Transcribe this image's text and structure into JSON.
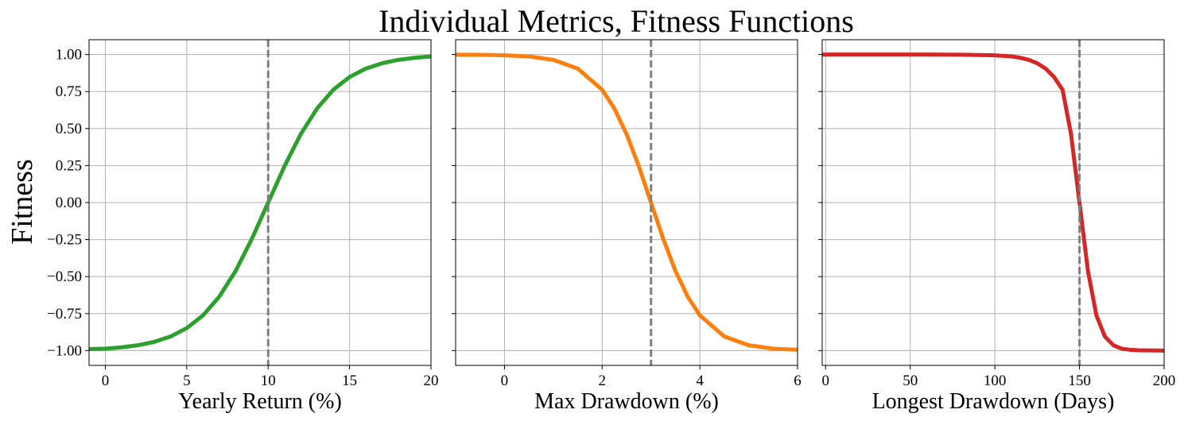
{
  "suptitle": "Individual Metrics, Fitness Functions",
  "shared_ylabel": "Fitness",
  "colors": {
    "green": "#2ca02c",
    "orange": "#ff7f0e",
    "red": "#d62728",
    "vline": "#808080",
    "grid": "#b0b0b0"
  },
  "chart_data": [
    {
      "type": "line",
      "xlabel": "Yearly Return (%)",
      "ylabel": "Fitness",
      "xlim": [
        -1,
        20
      ],
      "ylim": [
        -1.1,
        1.1
      ],
      "xticks": [
        0,
        5,
        10,
        15,
        20
      ],
      "xtick_labels": [
        "0",
        "5",
        "10",
        "15",
        "20"
      ],
      "yticks": [
        1.0,
        0.75,
        0.5,
        0.25,
        0.0,
        -0.25,
        -0.5,
        -0.75,
        -1.0
      ],
      "ytick_labels": [
        "1.00",
        "0.75",
        "0.50",
        "0.25",
        "0.00",
        "−0.25",
        "−0.50",
        "−0.75",
        "−1.00"
      ],
      "grid": true,
      "vline_x": 10,
      "series": [
        {
          "color": "#2ca02c",
          "x": [
            -1,
            0,
            1,
            2,
            3,
            4,
            5,
            6,
            7,
            8,
            9,
            10,
            11,
            12,
            13,
            14,
            15,
            16,
            17,
            18,
            19,
            20
          ],
          "y": [
            -0.99,
            -0.987,
            -0.978,
            -0.964,
            -0.941,
            -0.905,
            -0.848,
            -0.762,
            -0.635,
            -0.462,
            -0.245,
            0.0,
            0.245,
            0.462,
            0.635,
            0.762,
            0.848,
            0.905,
            0.941,
            0.964,
            0.978,
            0.987
          ]
        }
      ]
    },
    {
      "type": "line",
      "xlabel": "Max Drawdown (%)",
      "ylabel": "",
      "xlim": [
        -1,
        6
      ],
      "ylim": [
        -1.1,
        1.1
      ],
      "xticks": [
        0,
        2,
        4,
        6
      ],
      "xtick_labels": [
        "0",
        "2",
        "4",
        "6"
      ],
      "grid": true,
      "vline_x": 3,
      "series": [
        {
          "color": "#ff7f0e",
          "x": [
            -1,
            -0.5,
            0,
            0.5,
            1,
            1.5,
            2,
            2.25,
            2.5,
            2.75,
            3,
            3.25,
            3.5,
            3.75,
            4,
            4.5,
            5,
            5.5,
            6
          ],
          "y": [
            0.999,
            0.998,
            0.995,
            0.987,
            0.964,
            0.905,
            0.762,
            0.635,
            0.462,
            0.245,
            0.0,
            -0.245,
            -0.462,
            -0.635,
            -0.762,
            -0.905,
            -0.964,
            -0.987,
            -0.995
          ]
        }
      ]
    },
    {
      "type": "line",
      "xlabel": "Longest Drawdown (Days)",
      "ylabel": "",
      "xlim": [
        -2,
        200
      ],
      "ylim": [
        -1.1,
        1.1
      ],
      "xticks": [
        0,
        50,
        100,
        150,
        200
      ],
      "xtick_labels": [
        "0",
        "50",
        "100",
        "150",
        "200"
      ],
      "grid": true,
      "vline_x": 150,
      "series": [
        {
          "color": "#d62728",
          "x": [
            -2,
            20,
            40,
            60,
            80,
            100,
            110,
            115,
            120,
            125,
            130,
            135,
            140,
            145,
            150,
            155,
            160,
            165,
            170,
            175,
            180,
            185,
            190,
            200
          ],
          "y": [
            1.0,
            1.0,
            1.0,
            1.0,
            0.999,
            0.995,
            0.987,
            0.978,
            0.964,
            0.941,
            0.905,
            0.848,
            0.762,
            0.462,
            0.0,
            -0.462,
            -0.762,
            -0.905,
            -0.964,
            -0.987,
            -0.995,
            -0.998,
            -0.999,
            -1.0
          ]
        }
      ]
    }
  ]
}
